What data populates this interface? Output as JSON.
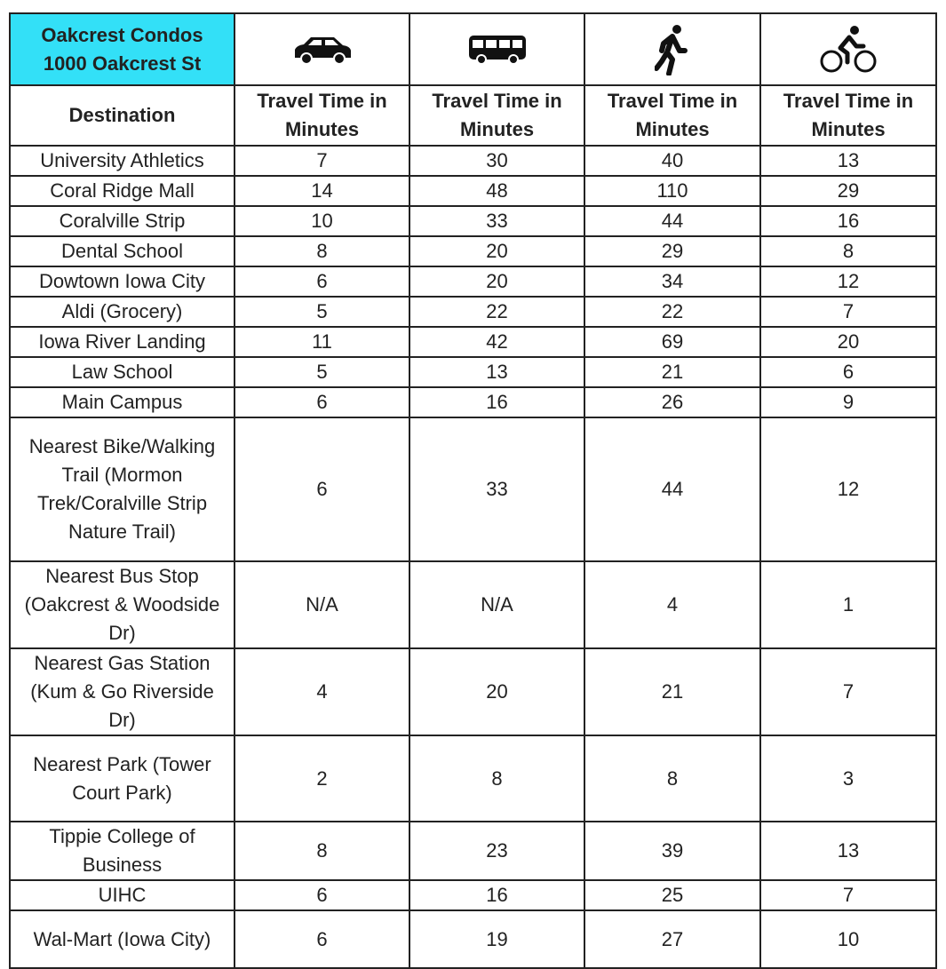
{
  "header": {
    "title": [
      "Oakcrest Condos",
      "1000 Oakcrest St"
    ]
  },
  "table": {
    "columns": [
      "Destination",
      "Travel Time in Minutes",
      "Travel Time in Minutes",
      "Travel Time in Minutes",
      "Travel Time in Minutes"
    ],
    "rows": [
      [
        "University Athletics",
        7,
        30,
        40,
        13
      ],
      [
        "Coral Ridge Mall",
        14,
        48,
        110,
        29
      ],
      [
        "Coralville Strip",
        10,
        33,
        44,
        16
      ],
      [
        "Dental School",
        8,
        20,
        29,
        8
      ],
      [
        "Dowtown Iowa City",
        6,
        20,
        34,
        12
      ],
      [
        "Aldi (Grocery)",
        5,
        22,
        22,
        7
      ],
      [
        "Iowa River Landing",
        11,
        42,
        69,
        20
      ],
      [
        "Law School",
        5,
        13,
        21,
        6
      ],
      [
        "Main Campus",
        6,
        16,
        26,
        9
      ],
      [
        "Nearest Bike/Walking Trail (Mormon Trek/Coralville Strip Nature Trail)",
        6,
        33,
        44,
        12
      ],
      [
        "Nearest Bus Stop (Oakcrest & Woodside Dr)",
        "N/A",
        "N/A",
        4,
        1
      ],
      [
        "Nearest Gas Station (Kum & Go Riverside Dr)",
        4,
        20,
        21,
        7
      ],
      [
        "Nearest Park (Tower Court Park)",
        2,
        8,
        8,
        3
      ],
      [
        "Tippie College of Business",
        8,
        23,
        39,
        13
      ],
      [
        "UIHC",
        6,
        16,
        25,
        7
      ],
      [
        "Wal-Mart (Iowa City)",
        6,
        19,
        27,
        10
      ]
    ]
  }
}
